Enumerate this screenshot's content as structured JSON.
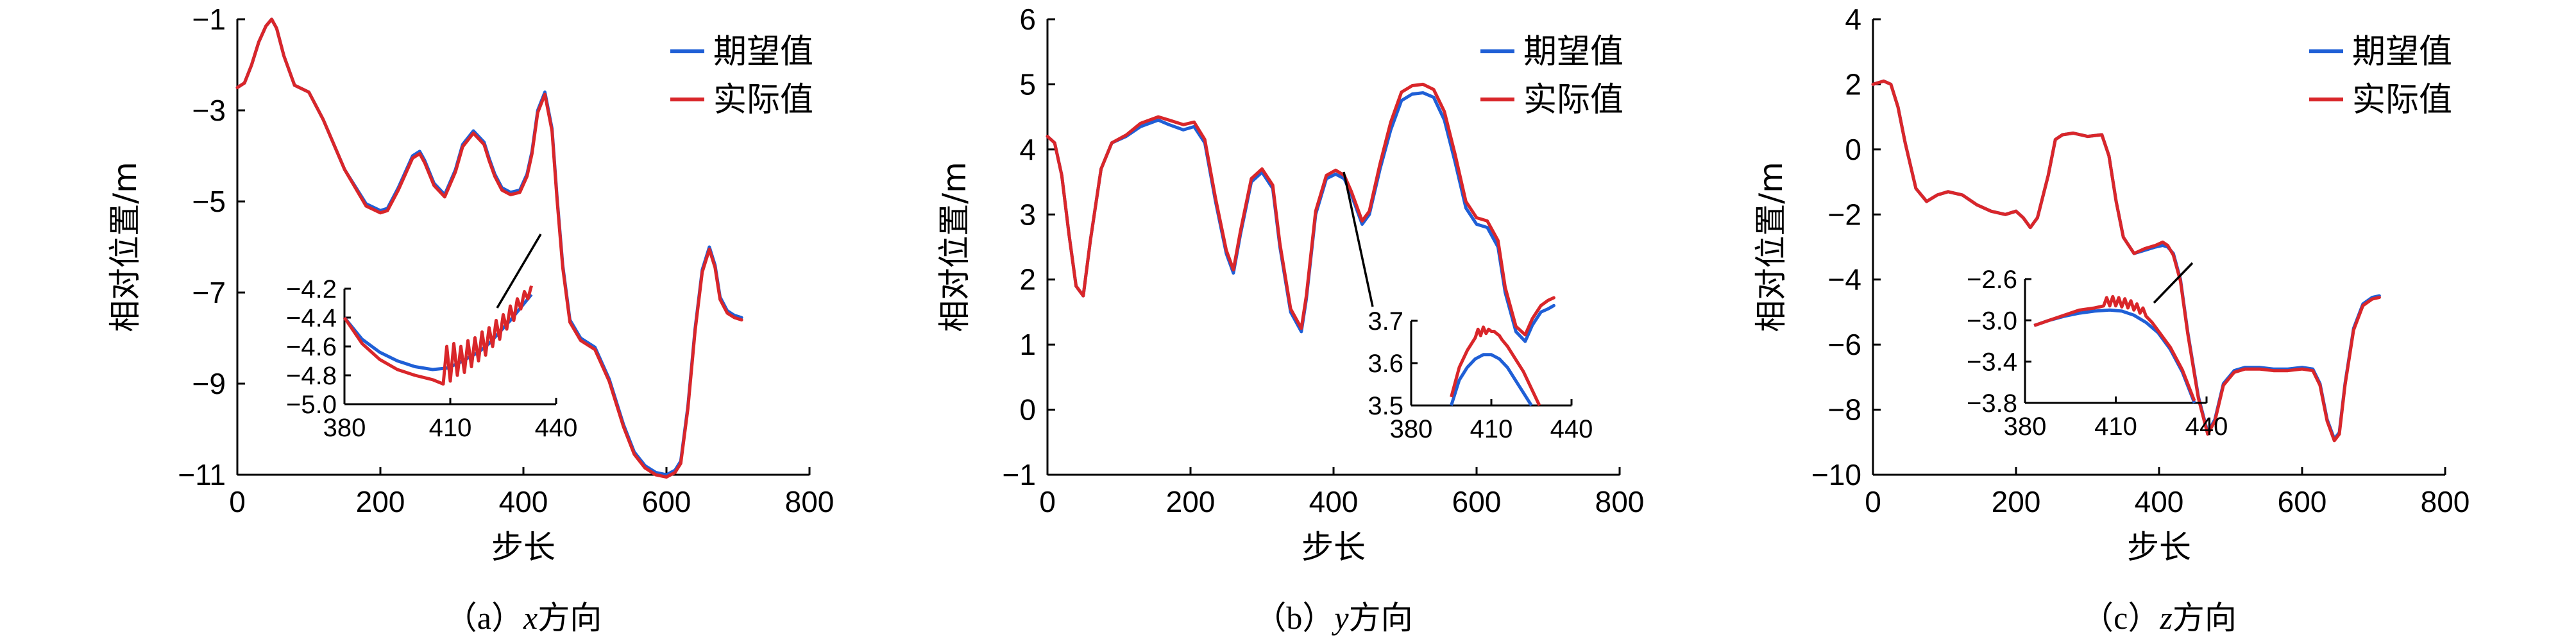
{
  "legend": {
    "expected": "期望值",
    "actual": "实际值"
  },
  "colors": {
    "expected": "#1f5fd6",
    "actual": "#d9262a"
  },
  "chart_data": [
    {
      "type": "line",
      "ylabel": "相对位置/m",
      "xlabel": "步长",
      "caption_prefix": "（a）",
      "caption_var": "x",
      "caption_suffix": "方向",
      "xlim": [
        0,
        800
      ],
      "ylim": [
        -11,
        -1
      ],
      "xticks": [
        0,
        200,
        400,
        600,
        800
      ],
      "yticks": [
        -1,
        -3,
        -5,
        -7,
        -9,
        -11
      ],
      "series": [
        {
          "name": "期望值",
          "x": [
            0,
            10,
            20,
            30,
            40,
            48,
            55,
            65,
            80,
            100,
            120,
            150,
            180,
            200,
            210,
            225,
            245,
            255,
            262,
            275,
            290,
            305,
            315,
            330,
            345,
            352,
            360,
            370,
            382,
            395,
            405,
            412,
            420,
            430,
            440,
            447,
            455,
            465,
            480,
            500,
            520,
            540,
            555,
            570,
            585,
            600,
            612,
            620,
            630,
            640,
            650,
            660,
            668,
            675,
            685,
            695,
            705
          ],
          "y": [
            -2.5,
            -2.4,
            -2.0,
            -1.5,
            -1.15,
            -1.0,
            -1.2,
            -1.8,
            -2.45,
            -2.6,
            -3.2,
            -4.3,
            -5.05,
            -5.2,
            -5.15,
            -4.7,
            -4.0,
            -3.9,
            -4.1,
            -4.6,
            -4.85,
            -4.3,
            -3.75,
            -3.45,
            -3.7,
            -4.05,
            -4.4,
            -4.7,
            -4.8,
            -4.75,
            -4.4,
            -3.9,
            -3.0,
            -2.6,
            -3.4,
            -4.9,
            -6.4,
            -7.6,
            -8.0,
            -8.2,
            -8.9,
            -9.9,
            -10.5,
            -10.8,
            -10.95,
            -11.0,
            -10.9,
            -10.7,
            -9.5,
            -7.8,
            -6.5,
            -6.0,
            -6.4,
            -7.1,
            -7.4,
            -7.5,
            -7.55
          ]
        },
        {
          "name": "实际值",
          "x": [
            0,
            10,
            20,
            30,
            40,
            48,
            55,
            65,
            80,
            100,
            120,
            150,
            180,
            200,
            210,
            225,
            245,
            255,
            262,
            275,
            290,
            305,
            315,
            330,
            345,
            352,
            360,
            370,
            382,
            395,
            405,
            412,
            420,
            430,
            440,
            447,
            455,
            465,
            480,
            500,
            520,
            540,
            555,
            570,
            585,
            600,
            612,
            620,
            630,
            640,
            650,
            660,
            668,
            675,
            685,
            695,
            705
          ],
          "y": [
            -2.5,
            -2.4,
            -2.0,
            -1.5,
            -1.15,
            -1.0,
            -1.2,
            -1.8,
            -2.45,
            -2.6,
            -3.2,
            -4.3,
            -5.1,
            -5.25,
            -5.2,
            -4.75,
            -4.05,
            -3.95,
            -4.15,
            -4.65,
            -4.9,
            -4.35,
            -3.8,
            -3.5,
            -3.75,
            -4.1,
            -4.45,
            -4.75,
            -4.85,
            -4.8,
            -4.45,
            -3.95,
            -3.05,
            -2.65,
            -3.45,
            -4.95,
            -6.45,
            -7.65,
            -8.05,
            -8.25,
            -8.95,
            -9.95,
            -10.55,
            -10.85,
            -11.0,
            -11.05,
            -10.95,
            -10.75,
            -9.55,
            -7.85,
            -6.55,
            -6.05,
            -6.45,
            -7.15,
            -7.45,
            -7.55,
            -7.6
          ]
        }
      ],
      "inset": {
        "xlim": [
          380,
          440
        ],
        "ylim": [
          -5.0,
          -4.2
        ],
        "xticks": [
          380,
          410,
          440
        ],
        "yticks": [
          -4.2,
          -4.4,
          -4.6,
          -4.8,
          -5.0
        ],
        "series": [
          {
            "name": "期望值",
            "x": [
              380,
              385,
              390,
              395,
              400,
              405,
              409,
              412,
              415,
              418,
              421,
              424,
              427,
              430,
              433
            ],
            "y": [
              -4.4,
              -4.55,
              -4.64,
              -4.7,
              -4.74,
              -4.76,
              -4.75,
              -4.72,
              -4.68,
              -4.64,
              -4.58,
              -4.5,
              -4.42,
              -4.33,
              -4.24
            ]
          },
          {
            "name": "实际值",
            "x": [
              380,
              385,
              390,
              395,
              400,
              405,
              408,
              409,
              410,
              411,
              412,
              413,
              414,
              415,
              416,
              417,
              418,
              419,
              420,
              421,
              422,
              423,
              424,
              425,
              426,
              427,
              428,
              429,
              430,
              431,
              432,
              433
            ],
            "y": [
              -4.4,
              -4.58,
              -4.69,
              -4.76,
              -4.8,
              -4.83,
              -4.86,
              -4.6,
              -4.84,
              -4.58,
              -4.8,
              -4.6,
              -4.78,
              -4.56,
              -4.74,
              -4.54,
              -4.7,
              -4.5,
              -4.66,
              -4.47,
              -4.6,
              -4.42,
              -4.55,
              -4.38,
              -4.48,
              -4.32,
              -4.42,
              -4.27,
              -4.34,
              -4.22,
              -4.27,
              -4.18
            ]
          }
        ]
      }
    },
    {
      "type": "line",
      "ylabel": "相对位置/m",
      "xlabel": "步长",
      "caption_prefix": "（b）",
      "caption_var": "y",
      "caption_suffix": "方向",
      "xlim": [
        0,
        800
      ],
      "ylim": [
        -1,
        6
      ],
      "xticks": [
        0,
        200,
        400,
        600,
        800
      ],
      "yticks": [
        6,
        5,
        4,
        3,
        2,
        1,
        0,
        -1
      ],
      "series": [
        {
          "name": "期望值",
          "x": [
            0,
            10,
            20,
            30,
            40,
            50,
            60,
            75,
            90,
            110,
            130,
            155,
            170,
            190,
            205,
            220,
            235,
            250,
            260,
            270,
            285,
            300,
            315,
            325,
            340,
            355,
            362,
            375,
            390,
            403,
            415,
            425,
            440,
            450,
            465,
            480,
            495,
            510,
            525,
            540,
            555,
            570,
            585,
            600,
            615,
            630,
            640,
            655,
            668,
            678,
            690,
            700,
            708
          ],
          "y": [
            4.2,
            4.1,
            3.6,
            2.7,
            1.9,
            1.75,
            2.6,
            3.7,
            4.1,
            4.2,
            4.35,
            4.45,
            4.38,
            4.3,
            4.35,
            4.1,
            3.2,
            2.4,
            2.1,
            2.7,
            3.5,
            3.65,
            3.4,
            2.5,
            1.5,
            1.2,
            1.7,
            3.0,
            3.55,
            3.62,
            3.55,
            3.3,
            2.85,
            3.0,
            3.7,
            4.3,
            4.75,
            4.85,
            4.87,
            4.8,
            4.45,
            3.8,
            3.1,
            2.85,
            2.8,
            2.5,
            1.8,
            1.2,
            1.05,
            1.3,
            1.5,
            1.55,
            1.6
          ]
        },
        {
          "name": "实际值",
          "x": [
            0,
            10,
            20,
            30,
            40,
            50,
            60,
            75,
            90,
            110,
            130,
            155,
            170,
            190,
            205,
            220,
            235,
            250,
            260,
            270,
            285,
            300,
            315,
            325,
            340,
            355,
            362,
            375,
            390,
            403,
            415,
            425,
            440,
            450,
            465,
            480,
            495,
            510,
            525,
            540,
            555,
            570,
            585,
            600,
            615,
            630,
            640,
            655,
            668,
            678,
            690,
            700,
            708
          ],
          "y": [
            4.2,
            4.1,
            3.6,
            2.7,
            1.9,
            1.75,
            2.6,
            3.7,
            4.1,
            4.22,
            4.4,
            4.5,
            4.45,
            4.38,
            4.42,
            4.15,
            3.25,
            2.45,
            2.15,
            2.75,
            3.55,
            3.7,
            3.45,
            2.55,
            1.55,
            1.25,
            1.75,
            3.05,
            3.6,
            3.68,
            3.6,
            3.35,
            2.9,
            3.05,
            3.78,
            4.42,
            4.88,
            4.98,
            5.0,
            4.92,
            4.58,
            3.92,
            3.2,
            2.95,
            2.9,
            2.6,
            1.88,
            1.28,
            1.15,
            1.4,
            1.6,
            1.68,
            1.72
          ]
        }
      ],
      "inset": {
        "xlim": [
          380,
          440
        ],
        "ylim": [
          3.5,
          3.7
        ],
        "xticks": [
          380,
          410,
          440
        ],
        "yticks": [
          3.7,
          3.6,
          3.5
        ],
        "series": [
          {
            "name": "期望值",
            "x": [
              395,
              398,
              401,
              404,
              407,
              410,
              413,
              416,
              419,
              422,
              425
            ],
            "y": [
              3.5,
              3.56,
              3.59,
              3.61,
              3.62,
              3.62,
              3.61,
              3.59,
              3.56,
              3.53,
              3.5
            ]
          },
          {
            "name": "实际值",
            "x": [
              395,
              398,
              401,
              404,
              405,
              406,
              407,
              408,
              409,
              410,
              411,
              412,
              413,
              414,
              416,
              419,
              422,
              425,
              428
            ],
            "y": [
              3.52,
              3.59,
              3.63,
              3.66,
              3.68,
              3.665,
              3.685,
              3.67,
              3.68,
              3.675,
              3.675,
              3.67,
              3.665,
              3.655,
              3.64,
              3.61,
              3.58,
              3.54,
              3.5
            ]
          }
        ]
      }
    },
    {
      "type": "line",
      "ylabel": "相对位置/m",
      "xlabel": "步长",
      "caption_prefix": "（c）",
      "caption_var": "z",
      "caption_suffix": "方向",
      "xlim": [
        0,
        800
      ],
      "ylim": [
        -10,
        4
      ],
      "xticks": [
        0,
        200,
        400,
        600,
        800
      ],
      "yticks": [
        4,
        2,
        0,
        -2,
        -4,
        -6,
        -8,
        -10
      ],
      "series": [
        {
          "name": "期望值",
          "x": [
            0,
            15,
            25,
            35,
            45,
            60,
            75,
            90,
            105,
            125,
            145,
            165,
            185,
            200,
            210,
            220,
            230,
            245,
            255,
            265,
            280,
            300,
            320,
            330,
            340,
            350,
            365,
            380,
            395,
            405,
            412,
            420,
            430,
            440,
            455,
            468,
            478,
            490,
            505,
            520,
            540,
            560,
            580,
            600,
            615,
            625,
            635,
            645,
            652,
            660,
            672,
            685,
            698,
            708
          ],
          "y": [
            2.0,
            2.1,
            2.0,
            1.3,
            0.2,
            -1.2,
            -1.6,
            -1.4,
            -1.3,
            -1.4,
            -1.7,
            -1.9,
            -2.0,
            -1.9,
            -2.1,
            -2.4,
            -2.1,
            -0.8,
            0.3,
            0.45,
            0.5,
            0.4,
            0.45,
            -0.2,
            -1.6,
            -2.7,
            -3.2,
            -3.1,
            -3.0,
            -2.95,
            -3.0,
            -3.2,
            -4.0,
            -5.6,
            -7.6,
            -8.7,
            -8.3,
            -7.2,
            -6.8,
            -6.7,
            -6.7,
            -6.75,
            -6.75,
            -6.7,
            -6.75,
            -7.2,
            -8.3,
            -8.9,
            -8.7,
            -7.2,
            -5.5,
            -4.75,
            -4.55,
            -4.5
          ]
        },
        {
          "name": "实际值",
          "x": [
            0,
            15,
            25,
            35,
            45,
            60,
            75,
            90,
            105,
            125,
            145,
            165,
            185,
            200,
            210,
            220,
            230,
            245,
            255,
            265,
            280,
            300,
            320,
            330,
            340,
            350,
            365,
            380,
            395,
            405,
            412,
            420,
            430,
            440,
            455,
            468,
            478,
            490,
            505,
            520,
            540,
            560,
            580,
            600,
            615,
            625,
            635,
            645,
            652,
            660,
            672,
            685,
            698,
            708
          ],
          "y": [
            2.0,
            2.1,
            2.0,
            1.3,
            0.2,
            -1.2,
            -1.6,
            -1.4,
            -1.3,
            -1.4,
            -1.7,
            -1.9,
            -2.0,
            -1.9,
            -2.1,
            -2.4,
            -2.1,
            -0.8,
            0.3,
            0.45,
            0.5,
            0.4,
            0.45,
            -0.2,
            -1.6,
            -2.7,
            -3.2,
            -3.05,
            -2.95,
            -2.85,
            -2.95,
            -3.25,
            -4.05,
            -5.65,
            -7.65,
            -8.75,
            -8.35,
            -7.25,
            -6.85,
            -6.75,
            -6.75,
            -6.8,
            -6.8,
            -6.75,
            -6.8,
            -7.25,
            -8.35,
            -8.95,
            -8.75,
            -7.25,
            -5.55,
            -4.8,
            -4.6,
            -4.55
          ]
        }
      ],
      "inset": {
        "xlim": [
          380,
          440
        ],
        "ylim": [
          -3.8,
          -2.6
        ],
        "xticks": [
          380,
          410,
          440
        ],
        "yticks": [
          -2.6,
          -3.0,
          -3.4,
          -3.8
        ],
        "series": [
          {
            "name": "期望值",
            "x": [
              383,
              388,
              393,
              398,
              403,
              408,
              412,
              416,
              420,
              424,
              428,
              432,
              436
            ],
            "y": [
              -3.05,
              -3.0,
              -2.96,
              -2.93,
              -2.91,
              -2.9,
              -2.91,
              -2.95,
              -3.02,
              -3.12,
              -3.28,
              -3.5,
              -3.8
            ]
          },
          {
            "name": "实际值",
            "x": [
              383,
              388,
              393,
              398,
              403,
              406,
              407,
              408,
              409,
              410,
              411,
              412,
              413,
              414,
              415,
              416,
              417,
              418,
              419,
              420,
              422,
              424,
              428,
              432,
              436
            ],
            "y": [
              -3.05,
              -3.0,
              -2.95,
              -2.9,
              -2.88,
              -2.86,
              -2.78,
              -2.86,
              -2.77,
              -2.86,
              -2.78,
              -2.87,
              -2.79,
              -2.88,
              -2.81,
              -2.9,
              -2.84,
              -2.93,
              -2.88,
              -2.96,
              -3.02,
              -3.1,
              -3.26,
              -3.48,
              -3.78
            ]
          }
        ]
      }
    }
  ]
}
